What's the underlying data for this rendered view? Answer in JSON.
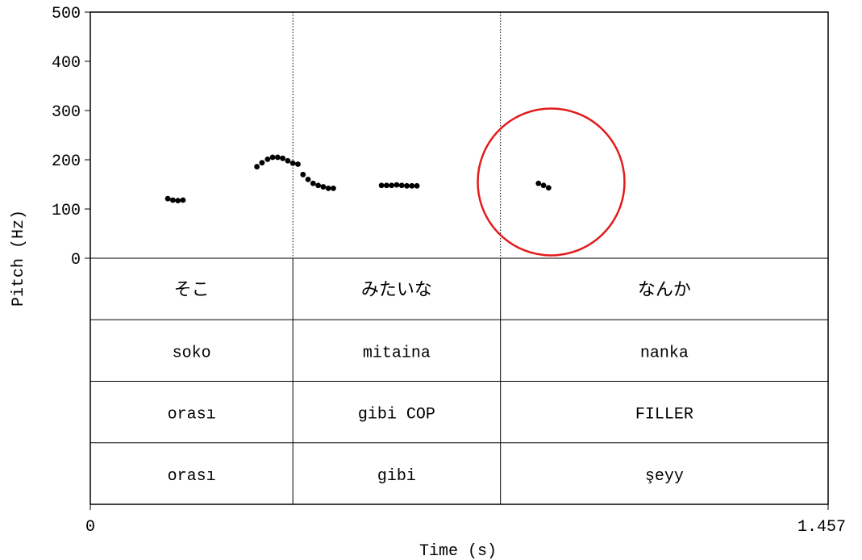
{
  "chart_data": {
    "type": "scatter",
    "xlabel": "Time (s)",
    "ylabel": "Pitch (Hz)",
    "xlim": [
      0,
      1.457
    ],
    "ylim": [
      0,
      500
    ],
    "x_tick_labels": [
      "0",
      "1.457"
    ],
    "y_tick_labels": [
      "0",
      "100",
      "200",
      "300",
      "400",
      "500"
    ],
    "y_ticks": [
      0,
      100,
      200,
      300,
      400,
      500
    ],
    "boundaries": [
      0.4,
      0.81
    ],
    "series": [
      {
        "points": [
          [
            0.153,
            121
          ],
          [
            0.163,
            118
          ],
          [
            0.173,
            117
          ],
          [
            0.183,
            118
          ],
          [
            0.329,
            186
          ],
          [
            0.339,
            194
          ],
          [
            0.35,
            201
          ],
          [
            0.36,
            205
          ],
          [
            0.37,
            205
          ],
          [
            0.38,
            203
          ],
          [
            0.39,
            198
          ],
          [
            0.4,
            193
          ],
          [
            0.41,
            191
          ],
          [
            0.42,
            170
          ],
          [
            0.43,
            160
          ],
          [
            0.44,
            152
          ],
          [
            0.45,
            148
          ],
          [
            0.46,
            145
          ],
          [
            0.47,
            142
          ],
          [
            0.48,
            142
          ],
          [
            0.575,
            148
          ],
          [
            0.585,
            148
          ],
          [
            0.595,
            148
          ],
          [
            0.605,
            149
          ],
          [
            0.615,
            148
          ],
          [
            0.625,
            147
          ],
          [
            0.635,
            147
          ],
          [
            0.645,
            147
          ],
          [
            0.885,
            152
          ],
          [
            0.895,
            148
          ],
          [
            0.905,
            143
          ]
        ]
      }
    ],
    "tiers": [
      {
        "cells": [
          "そこ",
          "みたいな",
          "なんか"
        ]
      },
      {
        "cells": [
          "soko",
          "mitaina",
          "nanka"
        ]
      },
      {
        "cells": [
          "orası",
          "gibi COP",
          "FILLER"
        ]
      },
      {
        "cells": [
          "orası",
          "gibi",
          "şeyy"
        ]
      }
    ],
    "annotation": {
      "type": "circle",
      "color": "#e31b1b",
      "center": [
        0.91,
        155
      ]
    },
    "grid": false
  }
}
